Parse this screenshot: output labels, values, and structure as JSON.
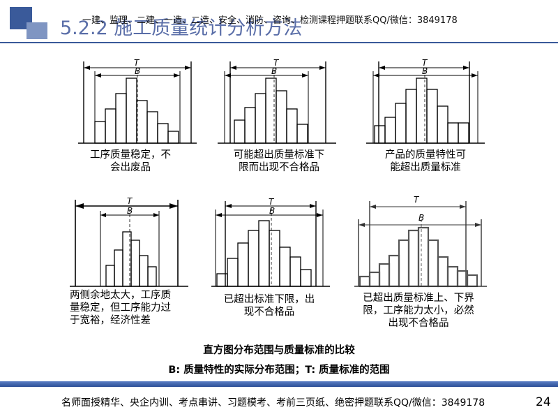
{
  "header": {
    "title": "5.2.2 施工质量统计分析方法",
    "watermark": "一建、监理、二建、一造、二造、安全、消防、咨询、检测课程押题联系QQ/微信：3849178"
  },
  "panels": [
    {
      "T": "T",
      "B": "B",
      "caption": [
        "工序质量稳定，不",
        "会出废品"
      ]
    },
    {
      "T": "T",
      "B": "B",
      "caption": [
        "可能超出质量标准下",
        "限而出现不合格品"
      ]
    },
    {
      "T": "T",
      "B": "B",
      "caption": [
        "产品的质量特性可",
        "能超出质量标准"
      ]
    },
    {
      "T": "T",
      "B": "B",
      "caption": [
        "两侧余地太大，工序质",
        "量稳定，但工序能力过",
        "于宽裕，经济性差"
      ]
    },
    {
      "T": "T",
      "B": "B",
      "caption": [
        "已超出标准下限，出",
        "现不合格品"
      ]
    },
    {
      "T": "T",
      "B": "B",
      "caption": [
        "已超出质量标准上、下界",
        "限，工序能力太小，必然",
        "出现不合格品"
      ]
    }
  ],
  "figure_caption": {
    "line1": "直方图分布范围与质量标准的比较",
    "line2": "B: 质量特性的实际分布范围；T: 质量标准的范围"
  },
  "footer": {
    "text": "名师面授精华、央企内训、考点串讲、习题模考、考前三页纸、绝密押题联系QQ/微信：3849178",
    "page": "24"
  }
}
